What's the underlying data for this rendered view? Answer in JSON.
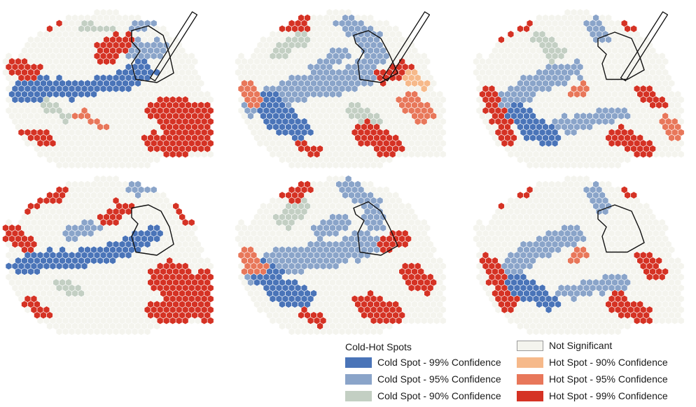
{
  "legend": {
    "title": "Cold-Hot Spots",
    "items": [
      {
        "key": "cold99",
        "label": "Cold Spot - 99% Confidence",
        "color": "#4a74b8"
      },
      {
        "key": "cold95",
        "label": "Cold Spot - 95% Confidence",
        "color": "#8aa4c9"
      },
      {
        "key": "cold90",
        "label": "Cold Spot - 90% Confidence",
        "color": "#c3cfc3"
      },
      {
        "key": "ns",
        "label": "Not Significant",
        "color": "#f4f4ee"
      },
      {
        "key": "hot90",
        "label": "Hot Spot - 90% Confidence",
        "color": "#f6b98a"
      },
      {
        "key": "hot95",
        "label": "Hot Spot - 95% Confidence",
        "color": "#e8775a"
      },
      {
        "key": "hot99",
        "label": "Hot Spot - 99% Confidence",
        "color": "#d53224"
      }
    ]
  },
  "map_panels": [
    {
      "id": "top-left",
      "outline": "with-probe"
    },
    {
      "id": "top-middle",
      "outline": "with-probe"
    },
    {
      "id": "top-right",
      "outline": "with-probe"
    },
    {
      "id": "bottom-left",
      "outline": "region"
    },
    {
      "id": "bottom-middle",
      "outline": "region"
    },
    {
      "id": "bottom-right",
      "outline": "region"
    }
  ]
}
